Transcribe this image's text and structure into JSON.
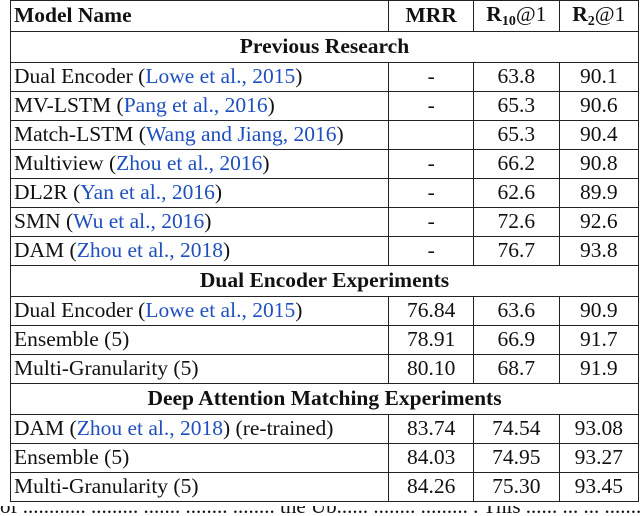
{
  "header": {
    "model_name": "Model Name",
    "mrr": "MRR",
    "r10_prefix": "R",
    "r10_sub": "10",
    "r10_suffix": "@1",
    "r2_prefix": "R",
    "r2_sub": "2",
    "r2_suffix": "@1"
  },
  "sections": [
    {
      "title": "Previous Research",
      "rows": [
        {
          "model": "Dual Encoder (",
          "cite": "Lowe et al., 2015",
          "after": ")",
          "mrr": "-",
          "r10": "63.8",
          "r2": "90.1"
        },
        {
          "model": "MV-LSTM (",
          "cite": "Pang et al., 2016",
          "after": ")",
          "mrr": "-",
          "r10": "65.3",
          "r2": "90.6"
        },
        {
          "model": "Match-LSTM (",
          "cite": "Wang and Jiang, 2016",
          "after": ")",
          "mrr": "",
          "r10": "65.3",
          "r2": "90.4"
        },
        {
          "model": "Multiview (",
          "cite": "Zhou et al., 2016",
          "after": ")",
          "mrr": "-",
          "r10": "66.2",
          "r2": "90.8"
        },
        {
          "model": "DL2R (",
          "cite": "Yan et al., 2016",
          "after": ")",
          "mrr": "-",
          "r10": "62.6",
          "r2": "89.9"
        },
        {
          "model": "SMN (",
          "cite": "Wu et al., 2016",
          "after": ")",
          "mrr": "-",
          "r10": "72.6",
          "r2": "92.6"
        },
        {
          "model": "DAM (",
          "cite": "Zhou et al., 2018",
          "after": ")",
          "mrr": "-",
          "r10": "76.7",
          "r2": "93.8"
        }
      ]
    },
    {
      "title": "Dual Encoder Experiments",
      "rows": [
        {
          "model": "Dual Encoder (",
          "cite": "Lowe et al., 2015",
          "after": ")",
          "mrr": "76.84",
          "r10": "63.6",
          "r2": "90.9"
        },
        {
          "model": "Ensemble (5)",
          "cite": "",
          "after": "",
          "mrr": "78.91",
          "r10": "66.9",
          "r2": "91.7"
        },
        {
          "model": "Multi-Granularity (5)",
          "cite": "",
          "after": "",
          "mrr": "80.10",
          "r10": "68.7",
          "r2": "91.9"
        }
      ]
    },
    {
      "title": "Deep Attention Matching Experiments",
      "rows": [
        {
          "model": "DAM (",
          "cite": "Zhou et al., 2018",
          "after": ") (re-trained)",
          "mrr": "83.74",
          "r10": "74.54",
          "r2": "93.08"
        },
        {
          "model": "Ensemble (5)",
          "cite": "",
          "after": "",
          "mrr": "84.03",
          "r10": "74.95",
          "r2": "93.27"
        },
        {
          "model": "Multi-Granularity (5)",
          "cite": "",
          "after": "",
          "mrr": "84.26",
          "r10": "75.30",
          "r2": "93.45"
        }
      ]
    }
  ],
  "caption_fragment": "of ............ ......... ....... ........ ........ the Ub...... ........ ......... . This ...... ... ... ........"
}
